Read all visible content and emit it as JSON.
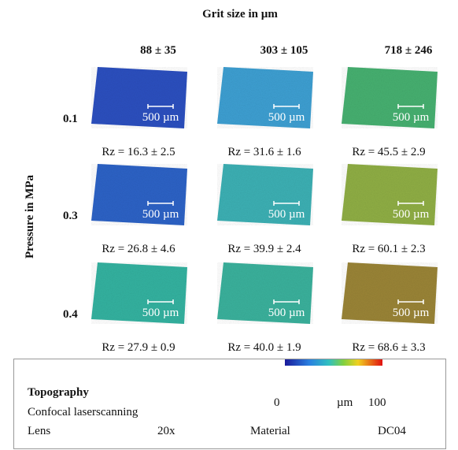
{
  "header": {
    "title": "Grit size  in  µm",
    "axis_label": "Pressure in MPa"
  },
  "columns": [
    "88 ± 35",
    "303 ± 105",
    "718 ± 246"
  ],
  "rows": [
    {
      "label": "0.1",
      "cells": [
        {
          "scale": "500 µm",
          "rz": "Rz = 16.3 ± 2.5"
        },
        {
          "scale": "500 µm",
          "rz": "Rz = 31.6 ± 1.6"
        },
        {
          "scale": "500 µm",
          "rz": "Rz = 45.5 ± 2.9"
        }
      ]
    },
    {
      "label": "0.3",
      "cells": [
        {
          "scale": "500 µm",
          "rz": "Rz = 26.8 ± 4.6"
        },
        {
          "scale": "500 µm",
          "rz": "Rz = 39.9 ± 2.4"
        },
        {
          "scale": "500 µm",
          "rz": "Rz = 60.1 ± 2.3"
        }
      ]
    },
    {
      "label": "0.4",
      "cells": [
        {
          "scale": "500 µm",
          "rz": "Rz = 27.9 ± 0.9"
        },
        {
          "scale": "500 µm",
          "rz": "Rz = 40.0 ± 1.9"
        },
        {
          "scale": "500 µm",
          "rz": "Rz = 68.6 ± 3.3"
        }
      ]
    }
  ],
  "legend": {
    "title": "Topography",
    "method": "Confocal laserscanning",
    "lens_label": "Lens",
    "lens_value": "20x",
    "material_label": "Material",
    "material_value": "DC04",
    "scale_min": "0",
    "scale_unit": "µm",
    "scale_max": "100"
  }
}
